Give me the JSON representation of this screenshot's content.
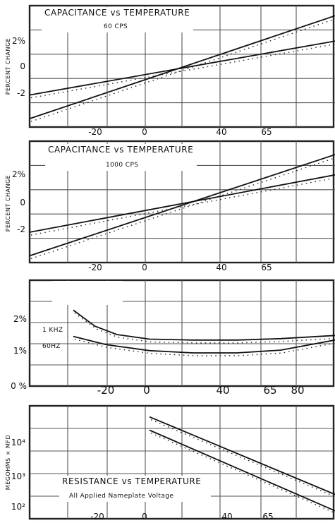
{
  "chart_data": [
    {
      "type": "line",
      "title": "CAPACITANCE vs TEMPERATURE",
      "subtitle": "60 CPS",
      "ylabel": "PERCENT CHANGE",
      "x_ticks": [
        "-20",
        "0",
        "40",
        "65"
      ],
      "y_ticks": [
        "2%",
        "0",
        "-2"
      ],
      "xlim": [
        -55,
        85
      ],
      "ylim": [
        -3.4,
        3.8
      ],
      "series": [
        {
          "x": [
            -55,
            85
          ],
          "y": [
            -2.9,
            3.2
          ]
        },
        {
          "x": [
            -55,
            85
          ],
          "y": [
            -1.5,
            1.7
          ]
        }
      ]
    },
    {
      "type": "line",
      "title": "CAPACITANCE vs TEMPERATURE",
      "subtitle": "1000 CPS",
      "ylabel": "PERCENT CHANGE",
      "x_ticks": [
        "-20",
        "0",
        "40",
        "65"
      ],
      "y_ticks": [
        "2%",
        "0",
        "-2"
      ],
      "xlim": [
        -55,
        85
      ],
      "ylim": [
        -3.4,
        3.8
      ],
      "series": [
        {
          "x": [
            -55,
            85
          ],
          "y": [
            -3.0,
            3.0
          ]
        },
        {
          "x": [
            -55,
            85
          ],
          "y": [
            -1.6,
            1.8
          ]
        }
      ]
    },
    {
      "type": "line",
      "title": "POWER FACTOR vs TEMPERATURE",
      "y_ticks": [
        "2%",
        "1%",
        "0 %"
      ],
      "x_ticks": [
        "-20",
        "0",
        "40",
        "65",
        "80"
      ],
      "annotations": [
        "1 KHZ",
        "60HZ"
      ],
      "xlim": [
        -55,
        85
      ],
      "ylim": [
        0,
        2.3
      ],
      "series": [
        {
          "x": [
            -35,
            -25,
            -15,
            0,
            20,
            40,
            60,
            85
          ],
          "y": [
            1.65,
            1.3,
            1.12,
            1.02,
            1.0,
            1.0,
            1.03,
            1.1
          ]
        },
        {
          "x": [
            -35,
            -20,
            0,
            20,
            40,
            60,
            85
          ],
          "y": [
            1.08,
            0.9,
            0.77,
            0.72,
            0.72,
            0.78,
            1.0
          ]
        }
      ]
    },
    {
      "type": "line",
      "title": "RESISTANCE vs TEMPERATURE",
      "subtitle": "All Applied Nameplate Voltage",
      "ylabel": "MEGOHMS × MFD",
      "x_ticks": [
        "-20",
        "0",
        "40",
        "65"
      ],
      "y_ticks": [
        "10⁴",
        "10³",
        "10²"
      ],
      "xlim": [
        -55,
        85
      ],
      "ylim": [
        2,
        4.55
      ],
      "series": [
        {
          "x": [
            0,
            85
          ],
          "y": [
            4.3,
            2.55
          ]
        },
        {
          "x": [
            0,
            85
          ],
          "y": [
            4.0,
            2.18
          ]
        }
      ]
    }
  ]
}
